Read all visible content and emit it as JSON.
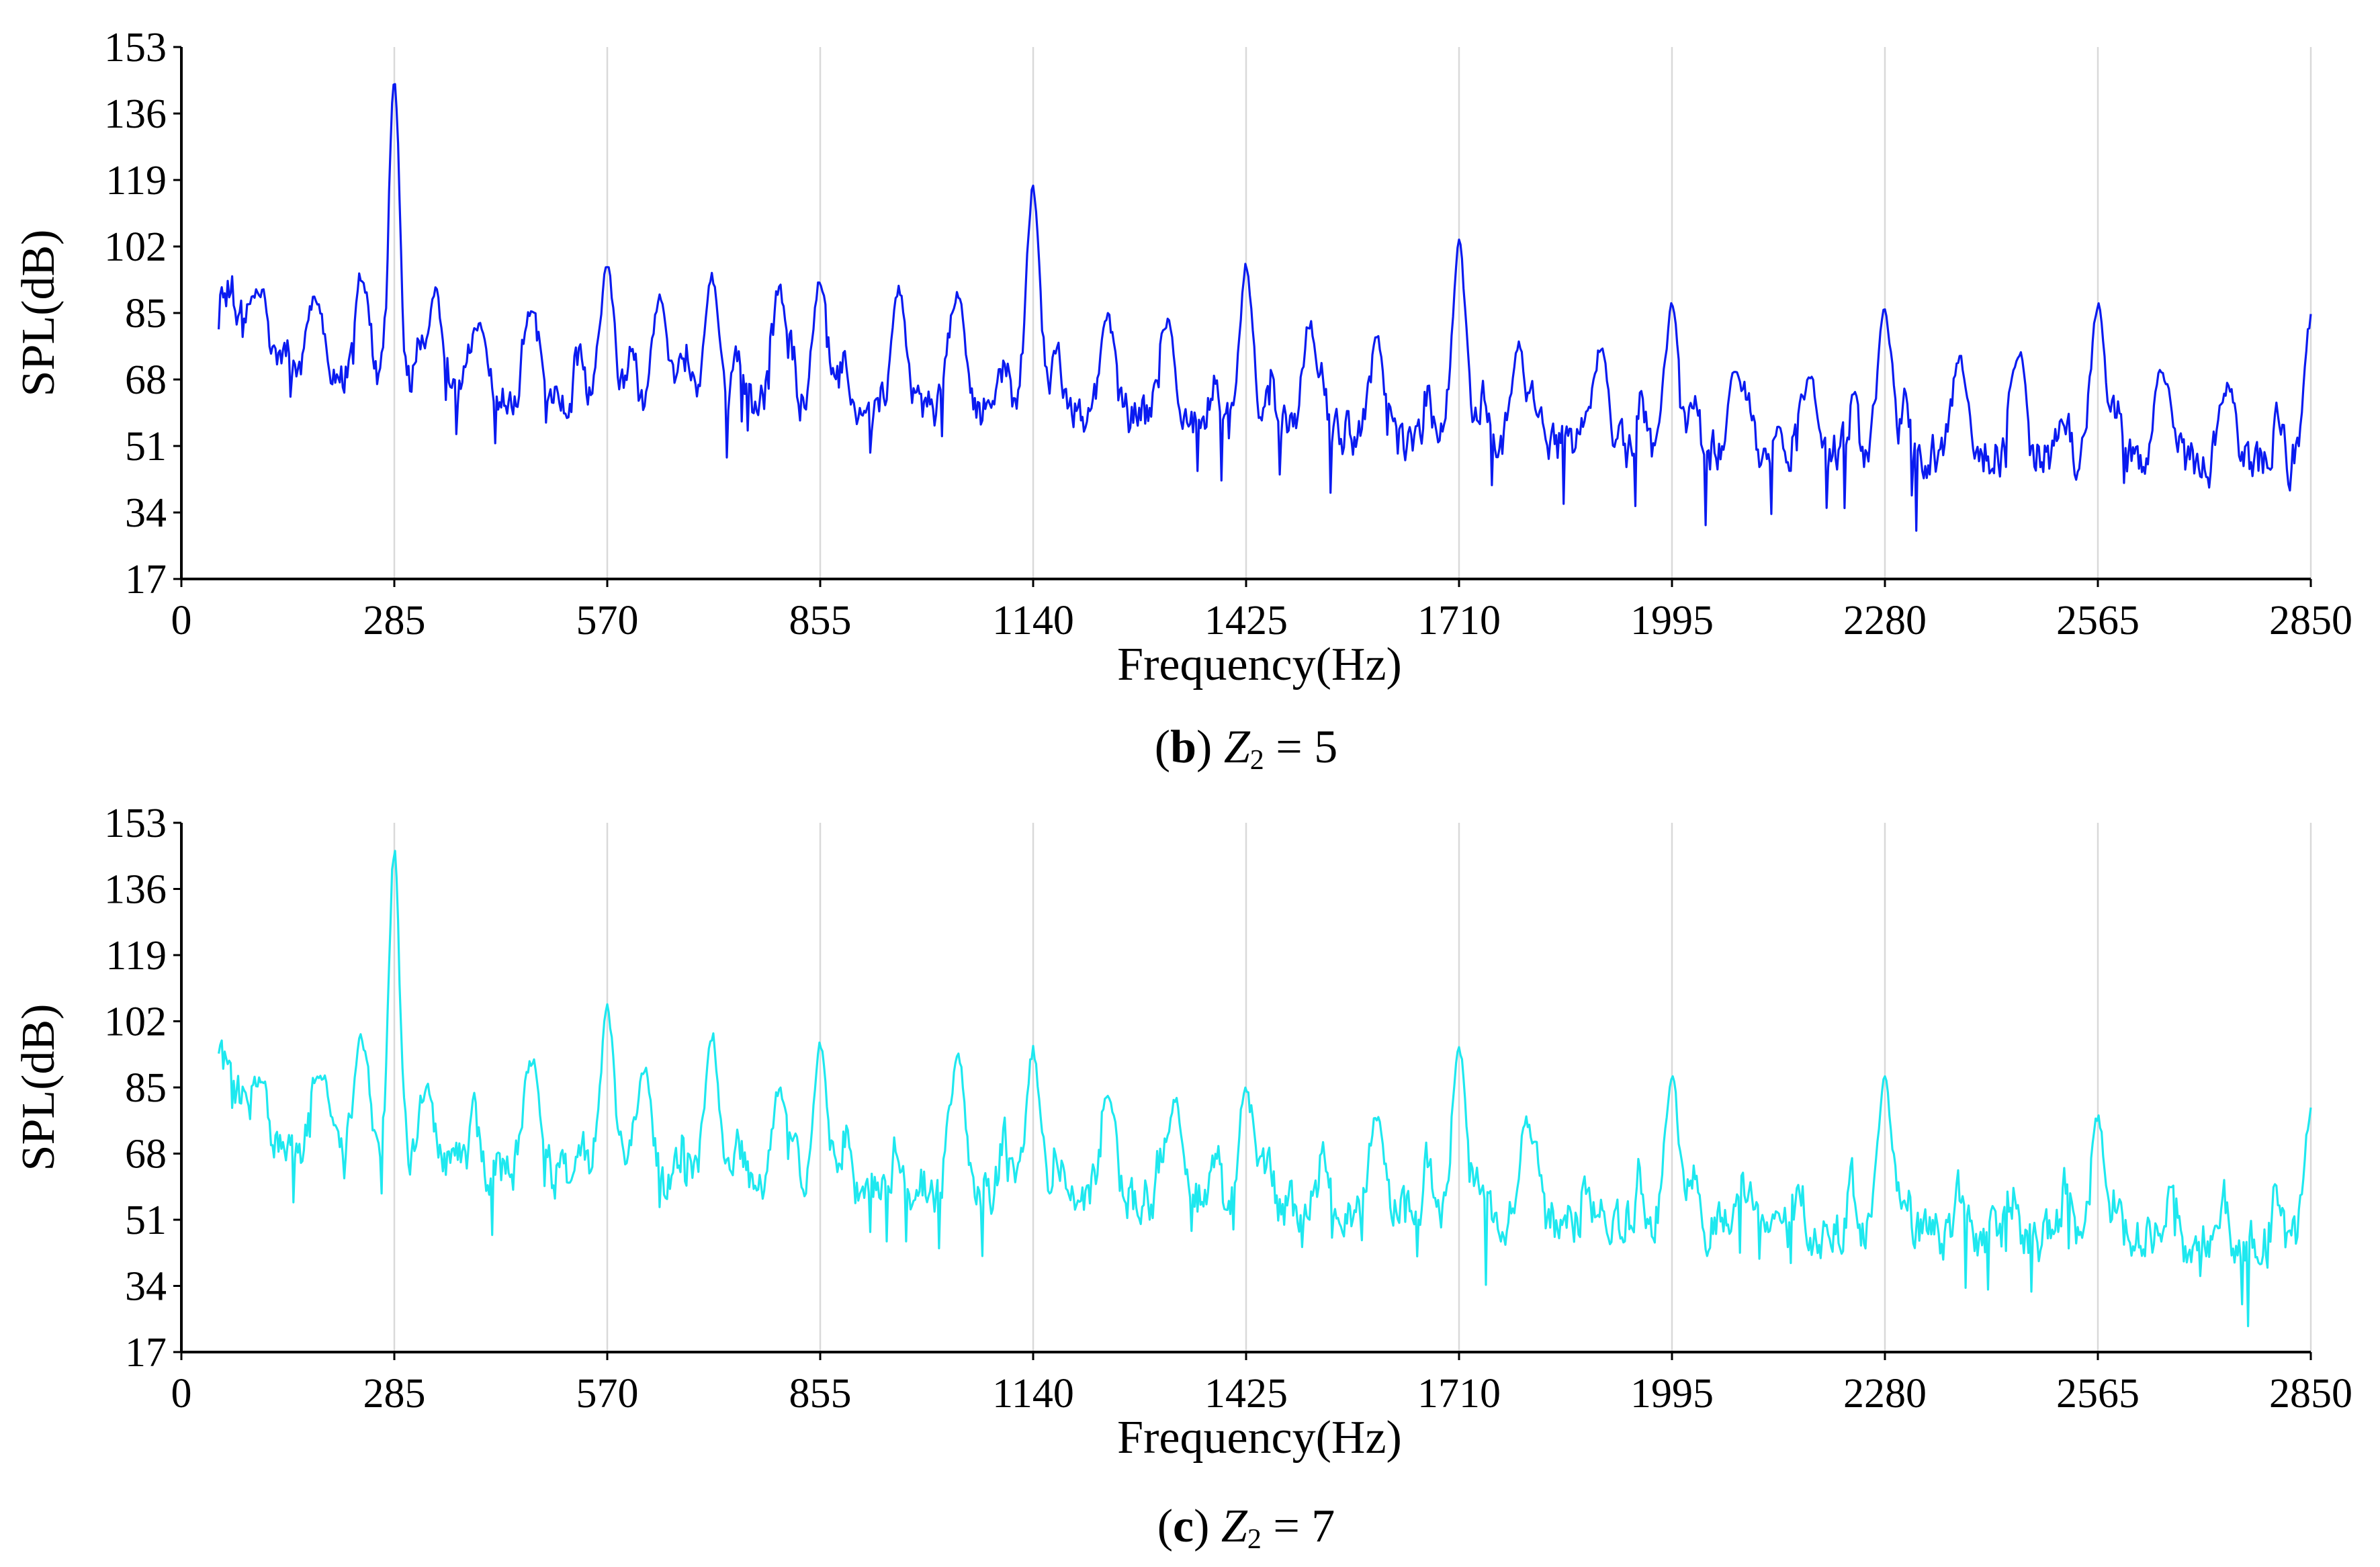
{
  "chart_data": [
    {
      "type": "line",
      "panel": "b",
      "caption": {
        "prefix": "(",
        "letter": "b",
        "suffix": ")",
        "variable": "Z",
        "subscript": "2",
        "equation": " = 5"
      },
      "xlabel": "Frequency(Hz)",
      "ylabel": "SPL(dB)",
      "xlim": [
        0,
        2850
      ],
      "ylim": [
        17,
        153
      ],
      "xticks": [
        0,
        285,
        570,
        855,
        1140,
        1425,
        1710,
        1995,
        2280,
        2565,
        2850
      ],
      "yticks": [
        17,
        34,
        51,
        68,
        85,
        102,
        119,
        136,
        153
      ],
      "grid": "vertical",
      "color": "#0a1bf0",
      "series": [
        {
          "name": "Z2 = 5",
          "x_start": 50,
          "x_end": 2850,
          "baseline": [
            [
              50,
              97
            ],
            [
              100,
              79
            ],
            [
              150,
              72
            ],
            [
              285,
              64
            ],
            [
              570,
              63
            ],
            [
              855,
              62
            ],
            [
              1140,
              60
            ],
            [
              1425,
              56
            ],
            [
              1710,
              52
            ],
            [
              1995,
              50
            ],
            [
              2280,
              49
            ],
            [
              2565,
              48
            ],
            [
              2850,
              46
            ]
          ],
          "noise": 9,
          "peaks": [
            [
              100,
              92
            ],
            [
              180,
              90
            ],
            [
              240,
              96
            ],
            [
              285,
              150
            ],
            [
              340,
              92
            ],
            [
              400,
              83
            ],
            [
              470,
              88
            ],
            [
              570,
              99
            ],
            [
              640,
              90
            ],
            [
              710,
              96
            ],
            [
              800,
              93
            ],
            [
              855,
              95
            ],
            [
              960,
              92
            ],
            [
              1040,
              91
            ],
            [
              1140,
              118
            ],
            [
              1240,
              85
            ],
            [
              1320,
              84
            ],
            [
              1425,
              98
            ],
            [
              1510,
              84
            ],
            [
              1600,
              80
            ],
            [
              1710,
              104
            ],
            [
              1790,
              78
            ],
            [
              1900,
              78
            ],
            [
              1995,
              88
            ],
            [
              2080,
              72
            ],
            [
              2180,
              70
            ],
            [
              2280,
              87
            ],
            [
              2380,
              75
            ],
            [
              2460,
              76
            ],
            [
              2565,
              88
            ],
            [
              2650,
              72
            ],
            [
              2740,
              68
            ],
            [
              2850,
              85
            ]
          ]
        }
      ]
    },
    {
      "type": "line",
      "panel": "c",
      "caption": {
        "prefix": "(",
        "letter": "c",
        "suffix": ")",
        "variable": "Z",
        "subscript": "2",
        "equation": " = 7"
      },
      "xlabel": "Frequency(Hz)",
      "ylabel": "SPL(dB)",
      "xlim": [
        0,
        2850
      ],
      "ylim": [
        17,
        153
      ],
      "xticks": [
        0,
        285,
        570,
        855,
        1140,
        1425,
        1710,
        1995,
        2280,
        2565,
        2850
      ],
      "yticks": [
        17,
        34,
        51,
        68,
        85,
        102,
        119,
        136,
        153
      ],
      "grid": "vertical",
      "color": "#1ee8ef",
      "series": [
        {
          "name": "Z2 = 7",
          "x_start": 50,
          "x_end": 2850,
          "baseline": [
            [
              50,
              95
            ],
            [
              100,
              75
            ],
            [
              150,
              70
            ],
            [
              285,
              65
            ],
            [
              570,
              62
            ],
            [
              855,
              60
            ],
            [
              1140,
              58
            ],
            [
              1425,
              55
            ],
            [
              1710,
              52
            ],
            [
              1995,
              50
            ],
            [
              2280,
              47
            ],
            [
              2565,
              46
            ],
            [
              2850,
              44
            ]
          ],
          "noise": 10,
          "peaks": [
            [
              100,
              88
            ],
            [
              190,
              90
            ],
            [
              240,
              99
            ],
            [
              285,
              148
            ],
            [
              330,
              86
            ],
            [
              470,
              94
            ],
            [
              570,
              107
            ],
            [
              620,
              92
            ],
            [
              710,
              100
            ],
            [
              800,
              86
            ],
            [
              855,
              97
            ],
            [
              1040,
              95
            ],
            [
              1140,
              96
            ],
            [
              1240,
              85
            ],
            [
              1330,
              83
            ],
            [
              1425,
              87
            ],
            [
              1600,
              78
            ],
            [
              1710,
              97
            ],
            [
              1800,
              78
            ],
            [
              1995,
              89
            ],
            [
              2280,
              89
            ],
            [
              2565,
              79
            ],
            [
              2850,
              80
            ]
          ]
        }
      ]
    }
  ]
}
